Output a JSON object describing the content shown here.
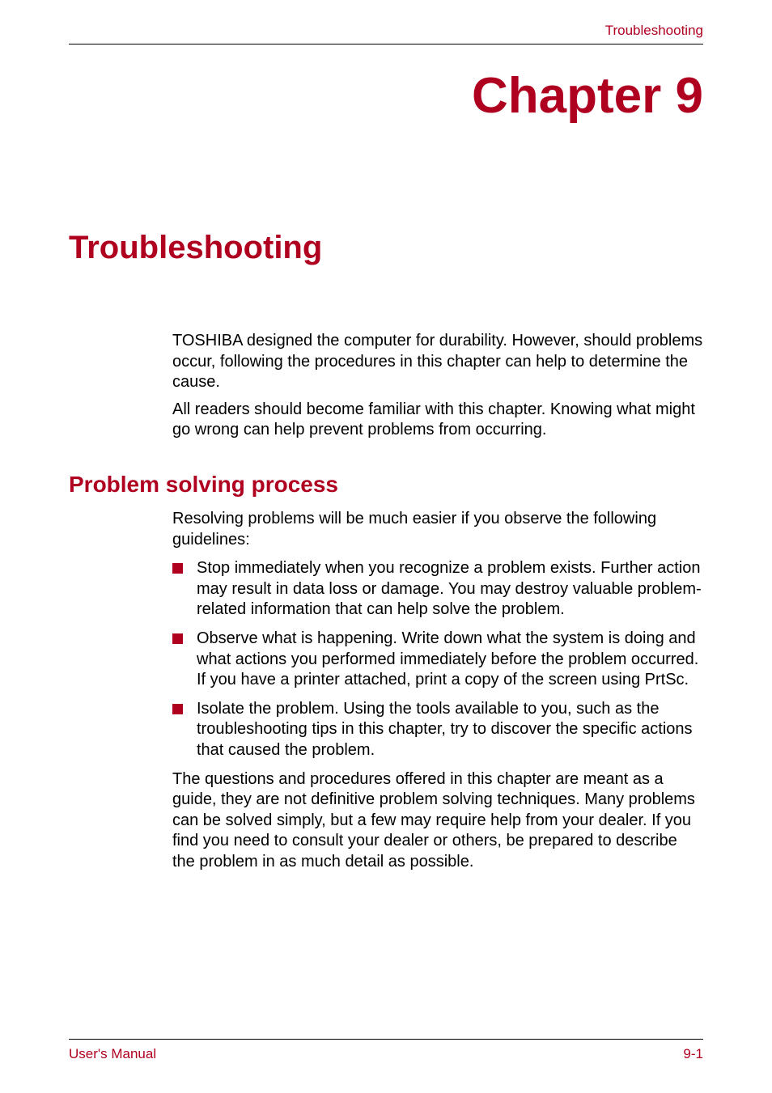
{
  "colors": {
    "accent": "#b00020",
    "text": "#000000",
    "background": "#ffffff",
    "bullet": "#b00020",
    "divider": "#000000"
  },
  "typography": {
    "chapter_title_size": 62,
    "main_title_size": 40,
    "section_heading_size": 28,
    "body_size": 20,
    "header_footer_size": 17
  },
  "header": {
    "text": "Troubleshooting"
  },
  "chapter": {
    "title": "Chapter 9"
  },
  "main": {
    "title": "Troubleshooting"
  },
  "intro": {
    "paragraph1": "TOSHIBA designed the computer for durability. However, should problems occur, following the procedures in this chapter can help to determine the cause.",
    "paragraph2": "All readers should become familiar with this chapter. Knowing what might go wrong can help prevent problems from occurring."
  },
  "section": {
    "heading": "Problem solving process",
    "intro": "Resolving problems will be much easier if you observe the following guidelines:",
    "bullets": [
      "Stop immediately when you recognize a problem exists. Further action may result in data loss or damage. You may destroy valuable problem-related information that can help solve the problem.",
      "Observe what is happening. Write down what the system is doing and what actions you performed immediately before the problem occurred. If you have a printer attached, print a copy of the screen using PrtSc.",
      "Isolate the problem. Using the tools available to you, such as the troubleshooting tips in this chapter, try to discover the specific actions that caused the problem."
    ],
    "closing": "The questions and procedures offered in this chapter are meant as a guide, they are not definitive problem solving techniques. Many problems can be solved simply, but a few may require help from your dealer. If you find you need to consult your dealer or others, be prepared to describe the problem in as much detail as possible."
  },
  "footer": {
    "left": "User's Manual",
    "right": "9-1"
  }
}
